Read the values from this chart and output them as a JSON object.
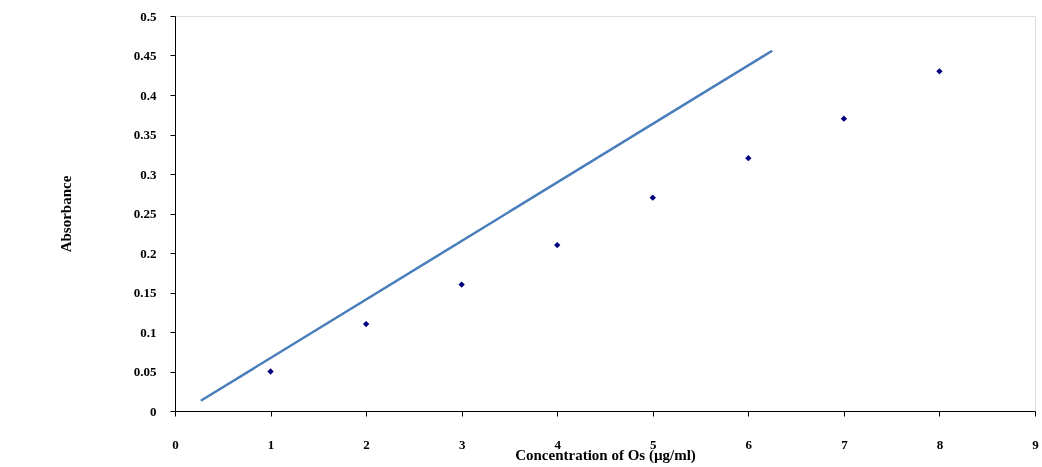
{
  "chart_data": {
    "type": "scatter",
    "xlabel": "Concentration of  Os (µg/ml)",
    "ylabel": "Absorbance",
    "series": [
      {
        "color": "#000080",
        "marker": "diamond",
        "x": [
          1,
          2,
          3,
          4,
          5,
          6,
          7,
          8
        ],
        "values": [
          0.05,
          0.11,
          0.16,
          0.21,
          0.27,
          0.32,
          0.37,
          0.43
        ]
      },
      {
        "type": "line",
        "color": "#4a7ebb",
        "marker": "none",
        "x": [
          0.27,
          6.25
        ],
        "values": [
          0.013,
          0.456
        ]
      }
    ],
    "xlim": [
      0,
      9
    ],
    "xticks": [
      0,
      1,
      2,
      3,
      4,
      5,
      6,
      7,
      8,
      9
    ],
    "ylim": [
      0,
      0.5
    ],
    "yticks": [
      0,
      0.05,
      0.1,
      0.15,
      0.2,
      0.25,
      0.3,
      0.35,
      0.4,
      0.45,
      0.5
    ],
    "grid": false
  }
}
